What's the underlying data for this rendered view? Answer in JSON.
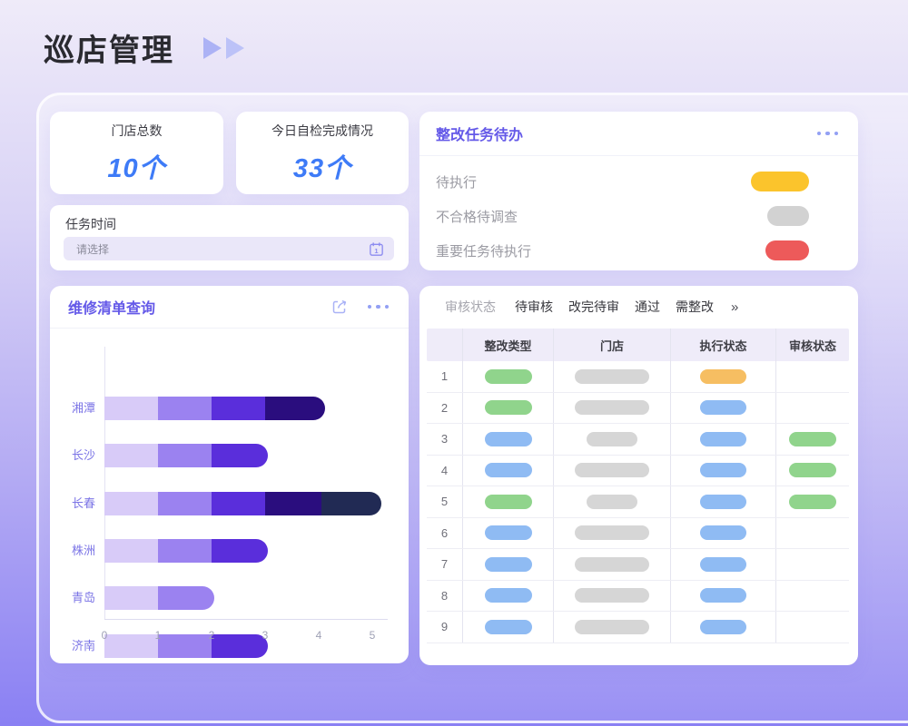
{
  "page": {
    "title": "巡店管理"
  },
  "stats": {
    "value_color": "#3E7BF7",
    "cards": [
      {
        "label": "门店总数",
        "value": "10个"
      },
      {
        "label": "今日自检完成情况",
        "value": "33个"
      }
    ]
  },
  "task_time": {
    "label": "任务时间",
    "placeholder": "请选择",
    "icon": "calendar-icon"
  },
  "todo": {
    "title": "整改任务待办",
    "menu_icon": "ellipsis-icon",
    "items": [
      {
        "label": "待执行",
        "status_color": "#FBC42C",
        "pill_width": 64
      },
      {
        "label": "不合格待调查",
        "status_color": "#D2D2D2",
        "pill_width": 46
      },
      {
        "label": "重要任务待执行",
        "status_color": "#ED5A5A",
        "pill_width": 48
      }
    ]
  },
  "repair": {
    "title": "维修清单查询",
    "icons": [
      "share-icon",
      "ellipsis-icon"
    ],
    "chart_data": {
      "type": "bar",
      "orientation": "horizontal",
      "stacked": true,
      "title": "",
      "xlabel": "",
      "ylabel": "",
      "categories": [
        "湘潭",
        "长沙",
        "长春",
        "株洲",
        "青岛",
        "济南"
      ],
      "bars": [
        [
          1,
          1,
          1,
          1.12
        ],
        [
          1,
          1,
          1.05
        ],
        [
          1,
          1,
          1,
          1.05,
          1.12
        ],
        [
          1,
          1,
          1.05
        ],
        [
          1,
          1.05
        ],
        [
          1,
          1,
          1.05
        ]
      ],
      "totals": [
        4.12,
        3.05,
        5.17,
        3.05,
        2.05,
        3.05
      ],
      "segment_colors": [
        "#D8CBF8",
        "#9B82F0",
        "#5A2EDB",
        "#2A0D7E",
        "#212A54"
      ],
      "xlim": [
        0,
        5
      ],
      "xticks": [
        "0",
        "1",
        "2",
        "3",
        "4",
        "5"
      ],
      "legend": false,
      "grid": false
    }
  },
  "review": {
    "filter_label": "审核状态",
    "tabs": [
      "待审核",
      "改完待审",
      "通过",
      "需整改"
    ],
    "more": "»",
    "columns": [
      "",
      "整改类型",
      "门店",
      "执行状态",
      "审核状态"
    ],
    "pill_colors": {
      "green": "#90D48C",
      "blue": "#8FBBF3",
      "gray": "#D6D6D6",
      "orange": "#F6BE62"
    },
    "store_pill_widths": {
      "long": 82,
      "short": 56
    },
    "rows": [
      {
        "num": "1",
        "type": "green",
        "store": "long",
        "exec": "orange",
        "audit": ""
      },
      {
        "num": "2",
        "type": "green",
        "store": "long",
        "exec": "blue",
        "audit": ""
      },
      {
        "num": "3",
        "type": "blue",
        "store": "short",
        "exec": "blue",
        "audit": "green"
      },
      {
        "num": "4",
        "type": "blue",
        "store": "long",
        "exec": "blue",
        "audit": "green"
      },
      {
        "num": "5",
        "type": "green",
        "store": "short",
        "exec": "blue",
        "audit": "green"
      },
      {
        "num": "6",
        "type": "blue",
        "store": "long",
        "exec": "blue",
        "audit": ""
      },
      {
        "num": "7",
        "type": "blue",
        "store": "long",
        "exec": "blue",
        "audit": ""
      },
      {
        "num": "8",
        "type": "blue",
        "store": "long",
        "exec": "blue",
        "audit": ""
      },
      {
        "num": "9",
        "type": "blue",
        "store": "long",
        "exec": "blue",
        "audit": ""
      }
    ]
  }
}
